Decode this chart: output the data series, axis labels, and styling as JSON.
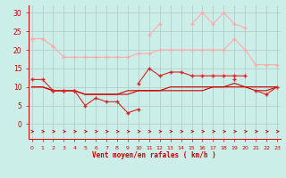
{
  "title": "",
  "xlabel": "Vent moyen/en rafales ( km/h )",
  "background_color": "#cceee8",
  "grid_color": "#b0c8c4",
  "x": [
    0,
    1,
    2,
    3,
    4,
    5,
    6,
    7,
    8,
    9,
    10,
    11,
    12,
    13,
    14,
    15,
    16,
    17,
    18,
    19,
    20,
    21,
    22,
    23
  ],
  "series": [
    {
      "y": [
        23,
        23,
        21,
        18,
        18,
        18,
        18,
        18,
        18,
        18,
        19,
        19,
        20,
        20,
        20,
        20,
        20,
        20,
        20,
        23,
        20,
        16,
        16,
        16
      ],
      "color": "#ffaaaa",
      "marker": "+",
      "lw": 0.8,
      "ms": 3
    },
    {
      "y": [
        null,
        null,
        null,
        null,
        null,
        null,
        null,
        null,
        null,
        null,
        null,
        24,
        27,
        null,
        null,
        27,
        30,
        27,
        30,
        27,
        26,
        null,
        null,
        null
      ],
      "color": "#ffaaaa",
      "marker": "+",
      "lw": 0.8,
      "ms": 3
    },
    {
      "y": [
        null,
        null,
        null,
        null,
        null,
        null,
        null,
        null,
        null,
        null,
        11,
        15,
        13,
        14,
        14,
        13,
        13,
        13,
        13,
        13,
        13,
        null,
        null,
        null
      ],
      "color": "#dd2222",
      "marker": "+",
      "lw": 0.8,
      "ms": 3
    },
    {
      "y": [
        12,
        12,
        9,
        9,
        9,
        null,
        null,
        null,
        null,
        null,
        null,
        null,
        null,
        null,
        null,
        null,
        null,
        null,
        null,
        12,
        null,
        9,
        8,
        10
      ],
      "color": "#dd2222",
      "marker": "+",
      "lw": 0.8,
      "ms": 3
    },
    {
      "y": [
        null,
        null,
        9,
        9,
        9,
        5,
        7,
        6,
        6,
        3,
        4,
        null,
        null,
        null,
        null,
        null,
        null,
        null,
        null,
        null,
        null,
        null,
        null,
        null
      ],
      "color": "#dd2222",
      "marker": "+",
      "lw": 0.8,
      "ms": 3
    },
    {
      "y": [
        10,
        10,
        9,
        9,
        9,
        8,
        8,
        8,
        8,
        8,
        9,
        9,
        9,
        9,
        9,
        9,
        9,
        10,
        10,
        10,
        10,
        10,
        10,
        10
      ],
      "color": "#cc0000",
      "marker": null,
      "lw": 0.8,
      "ms": 0
    },
    {
      "y": [
        10,
        10,
        9,
        9,
        9,
        8,
        8,
        8,
        8,
        9,
        9,
        9,
        9,
        10,
        10,
        10,
        10,
        10,
        10,
        11,
        10,
        9,
        9,
        10
      ],
      "color": "#cc0000",
      "marker": null,
      "lw": 0.8,
      "ms": 0
    }
  ],
  "yticks": [
    0,
    5,
    10,
    15,
    20,
    25,
    30
  ],
  "ylim": [
    -4,
    32
  ],
  "xlim": [
    -0.3,
    23.3
  ]
}
